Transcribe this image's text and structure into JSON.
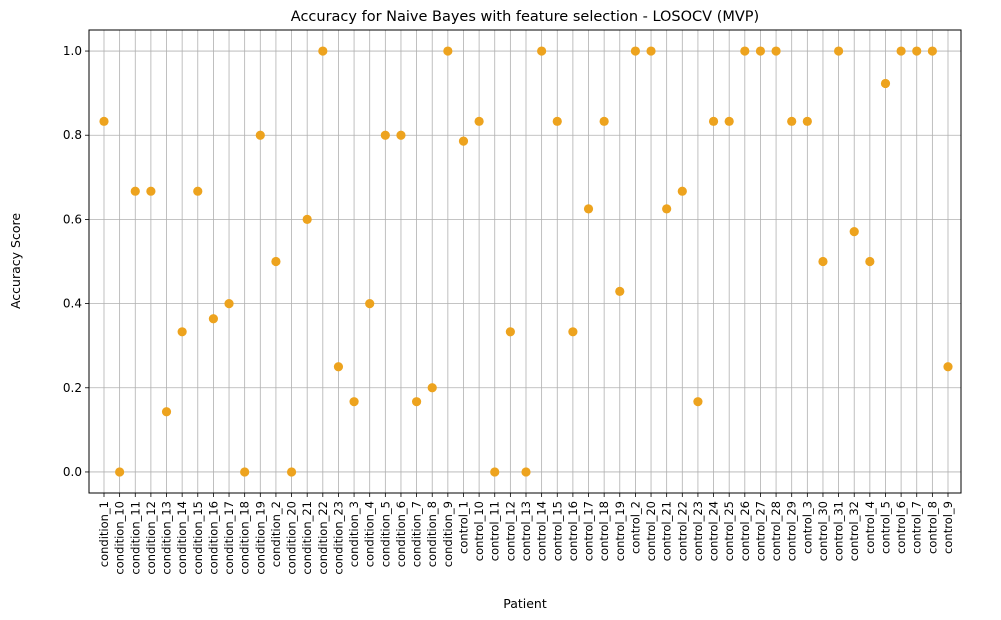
{
  "chart_data": {
    "type": "scatter",
    "title": "Accuracy for Naive Bayes with feature selection - LOSOCV (MVP)",
    "xlabel": "Patient",
    "ylabel": "Accuracy Score",
    "ylim": [
      -0.05,
      1.05
    ],
    "yticks": [
      "0.0",
      "0.2",
      "0.4",
      "0.6",
      "0.8",
      "1.0"
    ],
    "grid": true,
    "marker_color": "#eda31e",
    "categories": [
      "condition_1",
      "condition_10",
      "condition_11",
      "condition_12",
      "condition_13",
      "condition_14",
      "condition_15",
      "condition_16",
      "condition_17",
      "condition_18",
      "condition_19",
      "condition_2",
      "condition_20",
      "condition_21",
      "condition_22",
      "condition_23",
      "condition_3",
      "condition_4",
      "condition_5",
      "condition_6",
      "condition_7",
      "condition_8",
      "condition_9",
      "control_1",
      "control_10",
      "control_11",
      "control_12",
      "control_13",
      "control_14",
      "control_15",
      "control_16",
      "control_17",
      "control_18",
      "control_19",
      "control_2",
      "control_20",
      "control_21",
      "control_22",
      "control_23",
      "control_24",
      "control_25",
      "control_26",
      "control_27",
      "control_28",
      "control_29",
      "control_3",
      "control_30",
      "control_31",
      "control_32",
      "control_4",
      "control_5",
      "control_6",
      "control_7",
      "control_8",
      "control_9"
    ],
    "values": [
      0.833,
      0.0,
      0.667,
      0.667,
      0.143,
      0.333,
      0.667,
      0.364,
      0.4,
      0.0,
      0.8,
      0.5,
      0.0,
      0.6,
      1.0,
      0.25,
      0.167,
      0.4,
      0.8,
      0.8,
      0.167,
      0.2,
      1.0,
      0.786,
      0.833,
      0.0,
      0.333,
      0.0,
      1.0,
      0.833,
      0.333,
      0.625,
      0.833,
      0.429,
      1.0,
      1.0,
      0.625,
      0.667,
      0.167,
      0.833,
      0.833,
      1.0,
      1.0,
      1.0,
      0.833,
      0.833,
      0.5,
      1.0,
      0.571,
      0.5,
      0.923,
      1.0,
      1.0,
      1.0,
      0.25
    ]
  }
}
